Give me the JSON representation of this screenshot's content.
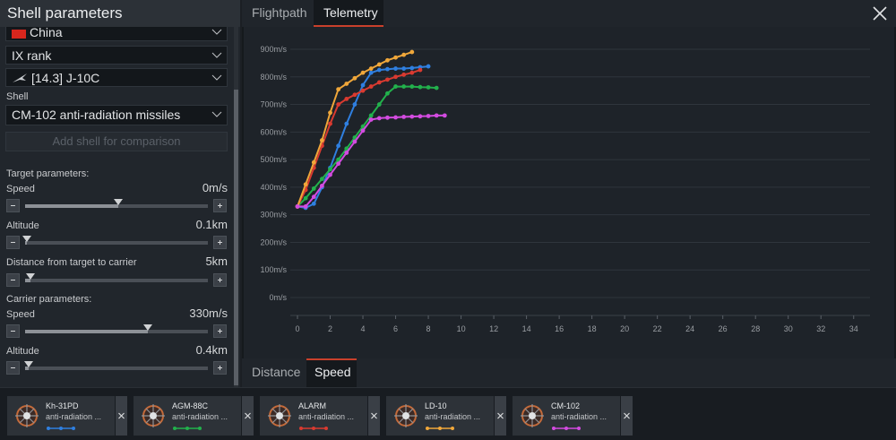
{
  "panel": {
    "title": "Shell parameters",
    "nation": "China",
    "rank": "IX rank",
    "vehicle": "[14.3] J-10C",
    "shell_label": "Shell",
    "shell": "CM-102 anti-radiation missiles",
    "add_button": "Add shell for comparison",
    "target": {
      "heading": "Target parameters:",
      "speed": {
        "label": "Speed",
        "value": "0m/s"
      },
      "altitude": {
        "label": "Altitude",
        "value": "0.1km"
      },
      "distance": {
        "label": "Distance from target to carrier",
        "value": "5km"
      }
    },
    "carrier": {
      "heading": "Carrier parameters:",
      "speed": {
        "label": "Speed",
        "value": "330m/s"
      },
      "altitude": {
        "label": "Altitude",
        "value": "0.4km"
      }
    }
  },
  "tabs": [
    "Flightpath",
    "Telemetry"
  ],
  "subtabs": [
    "Distance",
    "Speed"
  ],
  "chart_data": {
    "type": "line",
    "xlim": [
      0,
      35
    ],
    "xticks": [
      0,
      2,
      4,
      6,
      8,
      10,
      12,
      14,
      16,
      18,
      20,
      22,
      24,
      26,
      28,
      30,
      32,
      34
    ],
    "ylim": [
      0,
      900
    ],
    "yticks": [
      {
        "value": 0,
        "label": "0m/s"
      },
      {
        "value": 100,
        "label": "100m/s"
      },
      {
        "value": 200,
        "label": "200m/s"
      },
      {
        "value": 300,
        "label": "300m/s"
      },
      {
        "value": 400,
        "label": "400m/s"
      },
      {
        "value": 500,
        "label": "500m/s"
      },
      {
        "value": 600,
        "label": "600m/s"
      },
      {
        "value": 700,
        "label": "700m/s"
      },
      {
        "value": 800,
        "label": "800m/s"
      },
      {
        "value": 900,
        "label": "900m/s"
      }
    ],
    "grid": true,
    "series": [
      {
        "name": "Kh-31PD",
        "color": "#2f7fe0",
        "x": [
          0,
          0.5,
          1,
          1.5,
          2,
          2.5,
          3,
          3.5,
          4,
          4.5,
          5,
          5.5,
          6,
          6.5,
          7,
          7.5,
          8
        ],
        "values": [
          330,
          325,
          340,
          400,
          470,
          550,
          630,
          700,
          770,
          815,
          825,
          828,
          830,
          830,
          832,
          835,
          838
        ]
      },
      {
        "name": "AGM-88C",
        "color": "#22b14c",
        "x": [
          0,
          0.5,
          1,
          1.5,
          2,
          2.5,
          3,
          3.5,
          4,
          4.5,
          5,
          5.5,
          6,
          6.5,
          7,
          7.5,
          8,
          8.5
        ],
        "values": [
          330,
          360,
          395,
          430,
          465,
          500,
          540,
          580,
          620,
          660,
          700,
          740,
          765,
          765,
          765,
          763,
          762,
          760
        ]
      },
      {
        "name": "ALARM",
        "color": "#d93a30",
        "x": [
          0,
          0.5,
          1,
          1.5,
          2,
          2.5,
          3,
          3.5,
          4,
          4.5,
          5,
          5.5,
          6,
          6.5,
          7,
          7.5
        ],
        "values": [
          330,
          390,
          470,
          550,
          630,
          700,
          720,
          735,
          750,
          765,
          780,
          790,
          800,
          808,
          815,
          825
        ]
      },
      {
        "name": "LD-10",
        "color": "#f0a73a",
        "x": [
          0,
          0.5,
          1,
          1.5,
          2,
          2.5,
          3,
          3.5,
          4,
          4.5,
          5,
          5.5,
          6,
          6.5,
          7
        ],
        "values": [
          330,
          410,
          490,
          570,
          670,
          755,
          775,
          795,
          815,
          830,
          845,
          860,
          870,
          880,
          890
        ]
      },
      {
        "name": "CM-102",
        "color": "#d34be0",
        "x": [
          0,
          0.5,
          1,
          1.5,
          2,
          2.5,
          3,
          3.5,
          4,
          4.5,
          5,
          5.5,
          6,
          6.5,
          7,
          7.5,
          8,
          8.5,
          9
        ],
        "values": [
          330,
          330,
          365,
          405,
          445,
          485,
          525,
          565,
          605,
          645,
          650,
          652,
          653,
          655,
          656,
          657,
          658,
          660,
          660
        ]
      }
    ]
  },
  "cards": [
    {
      "subtitle": "anti-radiation ..."
    },
    {
      "subtitle": "anti-radiation ..."
    },
    {
      "subtitle": "anti-radiation ..."
    },
    {
      "subtitle": "anti-radiation ..."
    },
    {
      "subtitle": "anti-radiation ..."
    }
  ]
}
